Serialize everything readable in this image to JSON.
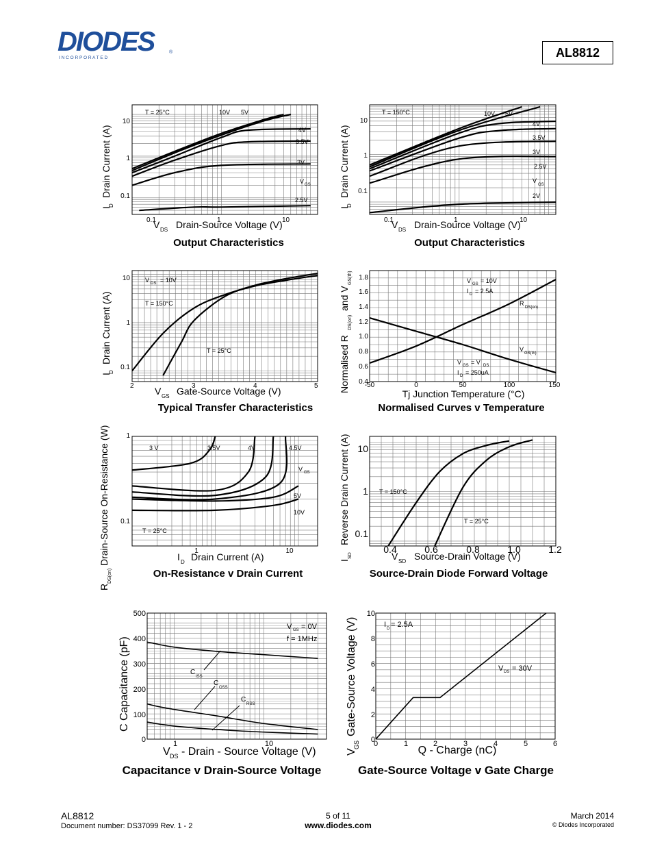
{
  "header": {
    "logo_text": "DIODES",
    "logo_sub": "I N C O R P O R A T E D",
    "registered": "®",
    "part_number": "AL8812"
  },
  "footer": {
    "part": "AL8812",
    "doc_number": "Document number: DS37099 Rev. 1 - 2",
    "page": "5 of 11",
    "website": "www.diodes.com",
    "date": "March 2014",
    "copyright": "© Diodes Incorporated"
  },
  "charts": {
    "c1": {
      "caption": "Output Characteristics",
      "temp": "T = 25°C",
      "ylab": "I",
      "ylab_sub": "D",
      "ylab_rest": "Drain Current (A)",
      "xlab": "V",
      "xlab_sub": "DS",
      "xlab_rest": "Drain-Source Voltage (V)",
      "yticks": [
        "10",
        "1",
        "0.1"
      ],
      "xticks": [
        "0.1",
        "1",
        "10"
      ],
      "curve_labels": [
        "10V",
        "5V",
        "4V",
        "3.5V",
        "3V",
        "V",
        "GS",
        "2.5V"
      ]
    },
    "c2": {
      "caption": "Output Characteristics",
      "temp": "T = 150°C",
      "ylab": "I",
      "ylab_sub": "D",
      "ylab_rest": "Drain Current (A)",
      "xlab": "V",
      "xlab_sub": "DS",
      "xlab_rest": "Drain-Source Voltage (V)",
      "yticks": [
        "10",
        "1",
        "0.1"
      ],
      "xticks": [
        "0.1",
        "1",
        "10"
      ],
      "curve_labels": [
        "10V",
        "5V",
        "4V",
        "3.5V",
        "3V",
        "2.5V",
        "V",
        "GS",
        "2V"
      ]
    },
    "c3": {
      "caption": "Typical Transfer Characteristics",
      "ylab": "I",
      "ylab_sub": "D",
      "ylab_rest": "Drain Current (A)",
      "xlab": "V",
      "xlab_sub": "GS",
      "xlab_rest": "Gate-Source Voltage (V)",
      "yticks": [
        "10",
        "1",
        "0.1"
      ],
      "xticks": [
        "2",
        "3",
        "4",
        "5"
      ],
      "labels": [
        "V",
        "DS",
        "= 10V",
        "T = 150°C",
        "T = 25°C"
      ]
    },
    "c4": {
      "caption": "Normalised Curves v Temperature",
      "ylab": "Normalised R",
      "ylab_sub": "DS(on)",
      "ylab_mid": "and V",
      "ylab_sub2": "GS(th)",
      "xlab": "Tj  Junction Temperature (°C)",
      "yticks": [
        "1.8",
        "1.6",
        "1.4",
        "1.2",
        "1.0",
        "0.8",
        "0.6",
        "0.4"
      ],
      "xticks": [
        "-50",
        "0",
        "50",
        "100",
        "150"
      ],
      "labels": [
        "V",
        "GS",
        "= 10V",
        "I",
        "D",
        "= 2.5A",
        "R",
        "DS(on)",
        "V",
        "GS(th)",
        "V",
        "GS",
        "= V",
        "DS",
        "I",
        "D",
        "= 250uA"
      ]
    },
    "c5": {
      "caption": "On-Resistance v Drain Current",
      "ylab": "R",
      "ylab_sub": "DS(on)",
      "ylab_rest": "Drain-Source On-Resistance (W)",
      "xlab": "I",
      "xlab_sub": "D",
      "xlab_rest": "Drain Current (A)",
      "yticks": [
        "1",
        "0.1"
      ],
      "xticks": [
        "1",
        "10"
      ],
      "labels": [
        "3 V",
        "3.5V",
        "4V",
        "4.5V",
        "V",
        "GS",
        "5V",
        "10V",
        "T = 25°C"
      ]
    },
    "c6": {
      "caption": "Source-Drain Diode Forward Voltage",
      "ylab": "I",
      "ylab_sub": "SD",
      "ylab_rest": "Reverse Drain Current (A)",
      "xlab": "V",
      "xlab_sub": "SD",
      "xlab_rest": "Source-Drain Voltage (V)",
      "yticks": [
        "10",
        "1",
        "0.1"
      ],
      "xticks": [
        "0.4",
        "0.6",
        "0.8",
        "1.0",
        "1.2"
      ],
      "labels": [
        "T = 150°C",
        "T = 25°C"
      ]
    },
    "c7": {
      "caption": "Capacitance v Drain-Source Voltage",
      "ylab": "C  Capacitance (pF)",
      "xlab": "V",
      "xlab_sub": "DS",
      "xlab_rest": "- Drain - Source Voltage (V)",
      "yticks": [
        "500",
        "400",
        "300",
        "200",
        "100",
        "0"
      ],
      "xticks": [
        "1",
        "10"
      ],
      "labels": [
        "V",
        "GS",
        "= 0V",
        "f = 1MHz",
        "C",
        "ISS",
        "C",
        "OSS",
        "C",
        "RSS"
      ]
    },
    "c8": {
      "caption": "Gate-Source Voltage v Gate Charge",
      "ylab": "V",
      "ylab_sub": "GS",
      "ylab_rest": "Gate-Source Voltage (V)",
      "xlab": "Q - Charge (nC)",
      "yticks": [
        "10",
        "8",
        "6",
        "4",
        "2",
        "0"
      ],
      "xticks": [
        "0",
        "1",
        "2",
        "3",
        "4",
        "5",
        "6"
      ],
      "labels": [
        "I",
        "D",
        "= 2.5A",
        "V",
        "DS",
        "= 30V"
      ]
    }
  },
  "chart_data": [
    {
      "type": "line",
      "title": "Output Characteristics",
      "temperature": "25°C",
      "xscale": "log",
      "yscale": "log",
      "xlim": [
        0.1,
        20
      ],
      "ylim": [
        0.05,
        20
      ],
      "series": [
        {
          "name": "10V",
          "x": [
            0.1,
            0.3,
            1,
            3,
            5
          ],
          "y": [
            0.5,
            1.3,
            3.5,
            7.5,
            10
          ]
        },
        {
          "name": "5V",
          "x": [
            0.1,
            0.3,
            1,
            3,
            6
          ],
          "y": [
            0.45,
            1.2,
            3.2,
            7,
            10
          ]
        },
        {
          "name": "4V",
          "x": [
            0.1,
            0.3,
            1,
            2,
            10
          ],
          "y": [
            0.4,
            1,
            2.8,
            4.2,
            4.5
          ]
        },
        {
          "name": "3.5V",
          "x": [
            0.1,
            0.3,
            1,
            2,
            10
          ],
          "y": [
            0.33,
            0.8,
            1.8,
            2.2,
            2.3
          ]
        },
        {
          "name": "3V",
          "x": [
            0.1,
            0.3,
            1,
            10
          ],
          "y": [
            0.2,
            0.4,
            0.6,
            0.65
          ]
        },
        {
          "name": "2.5V",
          "x": [
            0.12,
            0.5,
            1,
            10
          ],
          "y": [
            0.05,
            0.06,
            0.06,
            0.065
          ]
        }
      ]
    },
    {
      "type": "line",
      "title": "Output Characteristics",
      "temperature": "150°C",
      "xscale": "log",
      "yscale": "log",
      "xlim": [
        0.1,
        20
      ],
      "ylim": [
        0.05,
        20
      ],
      "series": [
        {
          "name": "10V",
          "x": [
            0.1,
            1,
            5
          ],
          "y": [
            0.6,
            3.5,
            10
          ]
        },
        {
          "name": "5V",
          "x": [
            0.1,
            1,
            8
          ],
          "y": [
            0.55,
            3.2,
            10
          ]
        },
        {
          "name": "4V",
          "x": [
            0.1,
            1,
            3,
            15
          ],
          "y": [
            0.5,
            2.8,
            4.5,
            5
          ]
        },
        {
          "name": "3.5V",
          "x": [
            0.1,
            1,
            3,
            15
          ],
          "y": [
            0.45,
            2.2,
            3.2,
            3.5
          ]
        },
        {
          "name": "3V",
          "x": [
            0.1,
            1,
            15
          ],
          "y": [
            0.35,
            1.5,
            1.9
          ]
        },
        {
          "name": "2.5V",
          "x": [
            0.1,
            1,
            15
          ],
          "y": [
            0.25,
            0.8,
            0.9
          ]
        },
        {
          "name": "2V",
          "x": [
            0.1,
            1,
            15
          ],
          "y": [
            0.06,
            0.09,
            0.1
          ]
        }
      ]
    },
    {
      "type": "line",
      "title": "Typical Transfer Characteristics",
      "note": "VDS = 10V",
      "xlim": [
        2,
        5
      ],
      "yscale": "log",
      "ylim": [
        0.08,
        12
      ],
      "series": [
        {
          "name": "T = 150°C",
          "x": [
            2,
            2.5,
            3,
            3.5,
            4,
            4.5,
            5
          ],
          "y": [
            0.1,
            0.6,
            2,
            3.8,
            5.8,
            7.6,
            9.5
          ]
        },
        {
          "name": "T = 25°C",
          "x": [
            2.5,
            2.8,
            3,
            3.5,
            4,
            4.5,
            5
          ],
          "y": [
            0.08,
            0.4,
            1.1,
            3.5,
            6,
            8.2,
            10.5
          ]
        }
      ]
    },
    {
      "type": "line",
      "title": "Normalised Curves v Temperature",
      "xlim": [
        -50,
        150
      ],
      "ylim": [
        0.4,
        1.8
      ],
      "series": [
        {
          "name": "RDS(on) (VGS = 10V, ID = 2.5A)",
          "x": [
            -50,
            0,
            50,
            100,
            150
          ],
          "y": [
            0.65,
            0.88,
            1.17,
            1.45,
            1.78
          ]
        },
        {
          "name": "VGS(th) (VGS = VDS, ID = 250uA)",
          "x": [
            -50,
            0,
            50,
            100,
            150
          ],
          "y": [
            1.26,
            1.08,
            0.9,
            0.7,
            0.52
          ]
        }
      ]
    },
    {
      "type": "line",
      "title": "On-Resistance v Drain Current",
      "note": "T = 25°C",
      "xscale": "log",
      "yscale": "log",
      "ylim": [
        0.06,
        1
      ],
      "series": [
        {
          "name": "3 V",
          "x": [
            0.1,
            0.5,
            0.85,
            1
          ],
          "y": [
            0.42,
            0.5,
            0.7,
            1
          ]
        },
        {
          "name": "3.5V",
          "x": [
            0.1,
            1,
            2.5,
            3
          ],
          "y": [
            0.28,
            0.25,
            0.4,
            1
          ]
        },
        {
          "name": "4V",
          "x": [
            0.1,
            1,
            4,
            5
          ],
          "y": [
            0.24,
            0.22,
            0.35,
            1
          ]
        },
        {
          "name": "4.5V",
          "x": [
            0.1,
            1,
            6,
            7
          ],
          "y": [
            0.21,
            0.2,
            0.3,
            1
          ]
        },
        {
          "name": "5V",
          "x": [
            0.1,
            1,
            5,
            10
          ],
          "y": [
            0.2,
            0.19,
            0.21,
            0.28
          ]
        },
        {
          "name": "10V",
          "x": [
            0.1,
            1,
            5,
            10
          ],
          "y": [
            0.15,
            0.15,
            0.17,
            0.2
          ]
        }
      ]
    },
    {
      "type": "line",
      "title": "Source-Drain Diode Forward Voltage",
      "xlim": [
        0.4,
        1.2
      ],
      "yscale": "log",
      "ylim": [
        0.08,
        15
      ],
      "series": [
        {
          "name": "T = 150°C",
          "x": [
            0.48,
            0.6,
            0.7,
            0.8,
            0.9,
            1.0
          ],
          "y": [
            0.08,
            0.6,
            2.5,
            5.8,
            8.5,
            10.5
          ]
        },
        {
          "name": "T = 25°C",
          "x": [
            0.68,
            0.8,
            0.9,
            1.0,
            1.1
          ],
          "y": [
            0.08,
            1.2,
            4.2,
            8,
            11
          ]
        }
      ]
    },
    {
      "type": "line",
      "title": "Capacitance v Drain-Source Voltage",
      "note": "VGS = 0V, f = 1MHz",
      "xscale": "log",
      "xlim": [
        0.2,
        40
      ],
      "ylim": [
        0,
        500
      ],
      "series": [
        {
          "name": "CISS",
          "x": [
            0.2,
            0.5,
            1,
            3,
            10,
            40
          ],
          "y": [
            410,
            385,
            365,
            348,
            335,
            320
          ]
        },
        {
          "name": "COSS",
          "x": [
            0.2,
            0.5,
            1,
            3,
            10,
            40
          ],
          "y": [
            190,
            140,
            118,
            92,
            62,
            38
          ]
        },
        {
          "name": "CRSS",
          "x": [
            0.2,
            0.5,
            1,
            3,
            10,
            40
          ],
          "y": [
            100,
            68,
            52,
            38,
            28,
            20
          ]
        }
      ]
    },
    {
      "type": "line",
      "title": "Gate-Source Voltage v Gate Charge",
      "note": "ID = 2.5A, VDS = 30V",
      "xlim": [
        0,
        6
      ],
      "ylim": [
        0,
        10
      ],
      "series": [
        {
          "name": "VGS",
          "x": [
            0,
            1.25,
            2.15,
            5.7
          ],
          "y": [
            0,
            3.3,
            3.3,
            10
          ]
        }
      ]
    }
  ]
}
